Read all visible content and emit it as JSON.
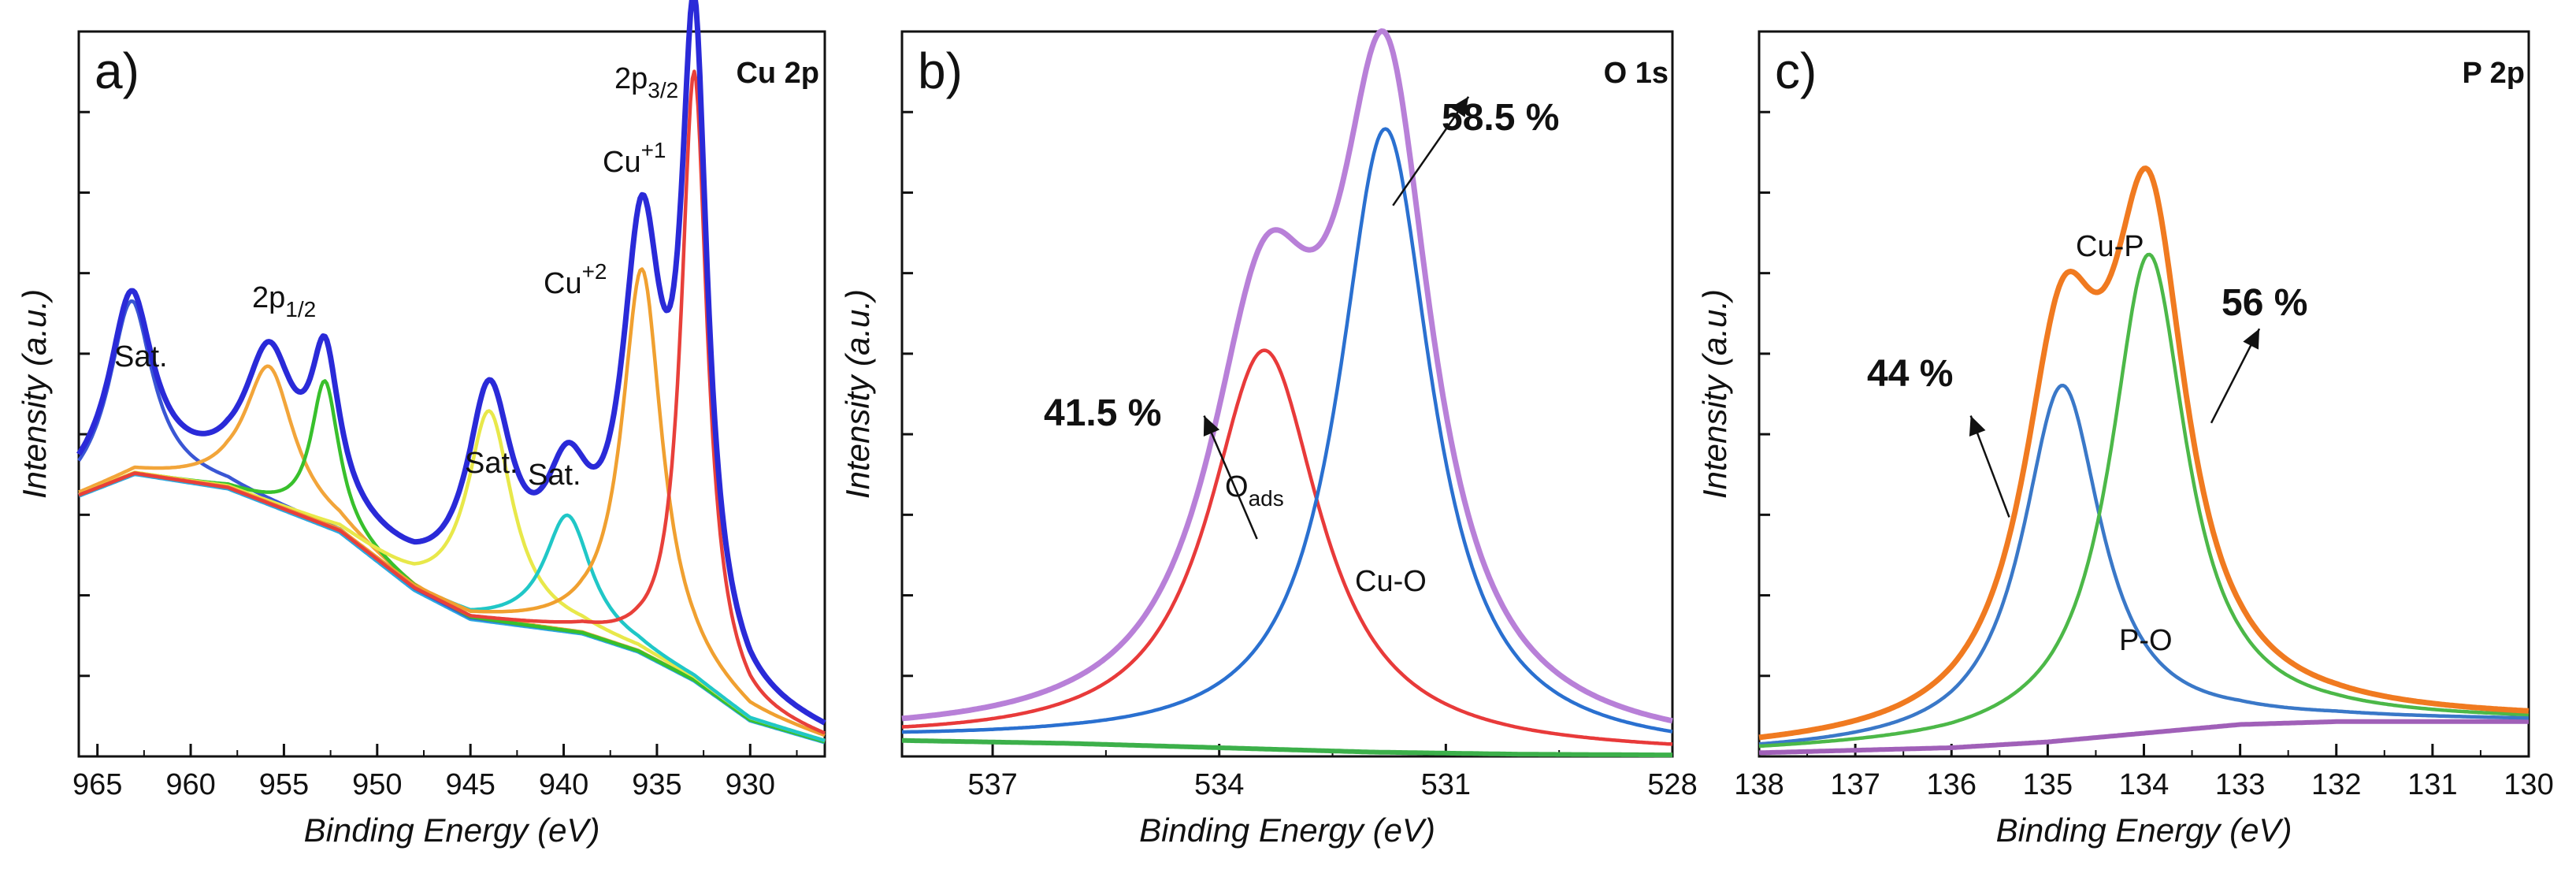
{
  "chart_data": [
    {
      "type": "line",
      "panel_label": "a)",
      "element": "Cu 2p",
      "xlabel": "Binding Energy (eV)",
      "ylabel": "Intensity (a.u.)",
      "xlim": [
        966,
        926
      ],
      "ylim": [
        0,
        100
      ],
      "xticks": [
        965,
        960,
        955,
        950,
        945,
        940,
        935,
        930
      ],
      "annotations": [
        {
          "text": "Sat.",
          "x": 963.2,
          "y": 60
        },
        {
          "main": "2p",
          "sub": "1/2",
          "x": 955.4,
          "y": 70
        },
        {
          "text": "Sat.",
          "x": 944.0,
          "y": 46
        },
        {
          "text": "Sat.",
          "x": 939.8,
          "y": 41
        },
        {
          "main": "Cu",
          "sup": "+2",
          "x": 937.6,
          "y": 72
        },
        {
          "main": "Cu",
          "sup": "+1",
          "x": 934.9,
          "y": 88
        },
        {
          "main": "2p",
          "sub": "3/2",
          "x": 934.5,
          "y": 99
        }
      ],
      "series": [
        {
          "name": "Background",
          "color": "#2ba8e0",
          "kind": "background",
          "points": [
            [
              966,
              36
            ],
            [
              963,
              39
            ],
            [
              958,
              37
            ],
            [
              952,
              31
            ],
            [
              948,
              23
            ],
            [
              945,
              19
            ],
            [
              942,
              18
            ],
            [
              939,
              17
            ],
            [
              936,
              14.5
            ],
            [
              933,
              10.5
            ],
            [
              930,
              5
            ],
            [
              926,
              2
            ]
          ]
        },
        {
          "name": "Sat. 963",
          "color": "#3a56d4",
          "center": 963.2,
          "height": 24,
          "width": 1.4
        },
        {
          "name": "2p1/2 sat 956",
          "color": "#f2a53a",
          "center": 955.8,
          "height": 19,
          "width": 1.6
        },
        {
          "name": "2p1/2",
          "color": "#38c02c",
          "center": 952.8,
          "height": 20,
          "width": 0.9
        },
        {
          "name": "Sat. 944",
          "color": "#e8e84a",
          "center": 944.0,
          "height": 29,
          "width": 1.5
        },
        {
          "name": "Sat. 939.8",
          "color": "#20c7c7",
          "center": 939.8,
          "height": 16,
          "width": 1.5
        },
        {
          "name": "Cu+2",
          "color": "#f0a030",
          "center": 935.8,
          "height": 53,
          "width": 1.3
        },
        {
          "name": "Cu+1",
          "color": "#e8403a",
          "center": 933.0,
          "height": 84,
          "width": 0.85
        },
        {
          "name": "Envelope",
          "color": "#2a2ad8",
          "kind": "envelope"
        }
      ]
    },
    {
      "type": "line",
      "panel_label": "b)",
      "element": "O 1s",
      "xlabel": "Binding Energy (eV)",
      "ylabel": "Intensity (a.u.)",
      "xlim": [
        538.2,
        528
      ],
      "ylim": [
        0,
        100
      ],
      "xticks": [
        537,
        534,
        531,
        528
      ],
      "annotations": [
        {
          "text": "41.5 %",
          "bold": true,
          "x": 535.4,
          "y": 55
        },
        {
          "main": "O",
          "sub": "ads",
          "x": 533.0,
          "y": 37
        },
        {
          "text": "Cu-O",
          "x": 531.2,
          "y": 26
        },
        {
          "text": "58.5 %",
          "bold": true,
          "x": 530.4,
          "y": 96
        }
      ],
      "arrows": [
        {
          "from": [
            533.5,
            30
          ],
          "to": [
            534.2,
            47
          ]
        },
        {
          "from": [
            531.7,
            76
          ],
          "to": [
            530.7,
            91
          ]
        }
      ],
      "series": [
        {
          "name": "Background",
          "color": "#3cb04a",
          "kind": "background",
          "points": [
            [
              538.2,
              2.2
            ],
            [
              536,
              1.8
            ],
            [
              534,
              1.2
            ],
            [
              532,
              0.6
            ],
            [
              530,
              0.3
            ],
            [
              528,
              0.2
            ]
          ]
        },
        {
          "name": "O ads",
          "color": "#e83a3a",
          "center": 533.4,
          "height": 55,
          "width": 0.9
        },
        {
          "name": "Cu-O",
          "color": "#2a70d0",
          "center": 531.8,
          "height": 86,
          "width": 0.75
        },
        {
          "name": "Envelope",
          "color": "#b880d8",
          "kind": "envelope"
        }
      ]
    },
    {
      "type": "line",
      "panel_label": "c)",
      "element": "P 2p",
      "xlabel": "Binding Energy (eV)",
      "ylabel": "Intensity (a.u.)",
      "xlim": [
        138,
        130
      ],
      "ylim": [
        0,
        100
      ],
      "xticks": [
        138,
        137,
        136,
        135,
        134,
        133,
        132,
        131,
        130
      ],
      "annotations": [
        {
          "text": "44 %",
          "bold": true,
          "x": 136.2,
          "y": 61
        },
        {
          "text": "Cu-P",
          "x": 133.8,
          "y": 73
        },
        {
          "text": "56 %",
          "bold": true,
          "x": 133.0,
          "y": 68
        },
        {
          "text": "P-O",
          "x": 134.6,
          "y": 16
        }
      ],
      "arrows": [
        {
          "from": [
            135.4,
            33
          ],
          "to": [
            135.8,
            47
          ]
        },
        {
          "from": [
            133.3,
            46
          ],
          "to": [
            132.8,
            59
          ]
        }
      ],
      "series": [
        {
          "name": "Background",
          "color": "#a060b8",
          "kind": "background",
          "points": [
            [
              138,
              0.5
            ],
            [
              136,
              1.2
            ],
            [
              135,
              2
            ],
            [
              134,
              3.2
            ],
            [
              133,
              4.4
            ],
            [
              132,
              4.8
            ],
            [
              130,
              4.8
            ]
          ]
        },
        {
          "name": "P-O",
          "color": "#3a78c8",
          "center": 134.85,
          "height": 49,
          "width": 0.5
        },
        {
          "name": "Cu-P",
          "color": "#4cb848",
          "center": 133.95,
          "height": 66,
          "width": 0.48
        },
        {
          "name": "Envelope",
          "color": "#f07a20",
          "kind": "envelope"
        }
      ]
    }
  ]
}
